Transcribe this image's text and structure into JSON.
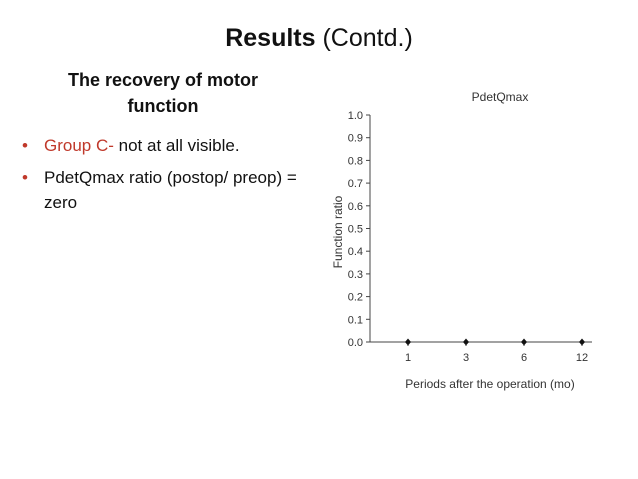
{
  "slide": {
    "title_bold": "Results",
    "title_rest": " (Contd.)",
    "subheading": "The recovery of motor function",
    "bullets": [
      {
        "prefix": "Group C-",
        "text": " not at all visible."
      },
      {
        "prefix": "",
        "text": "PdetQmax ratio (postop/ preop) = zero"
      }
    ]
  },
  "colors": {
    "bullet": "#c0392b",
    "accent_red": "#c0392b"
  },
  "chart_data": {
    "type": "scatter",
    "title": "PdetQmax",
    "xlabel": "Periods after the operation (mo)",
    "ylabel": "Function ratio",
    "categories": [
      "1",
      "3",
      "6",
      "12"
    ],
    "values": [
      0,
      0,
      0,
      0
    ],
    "ylim": [
      0.0,
      1.0
    ],
    "yticks": [
      "0.0",
      "0.1",
      "0.2",
      "0.3",
      "0.4",
      "0.5",
      "0.6",
      "0.7",
      "0.8",
      "0.9",
      "1.0"
    ],
    "grid": false
  }
}
